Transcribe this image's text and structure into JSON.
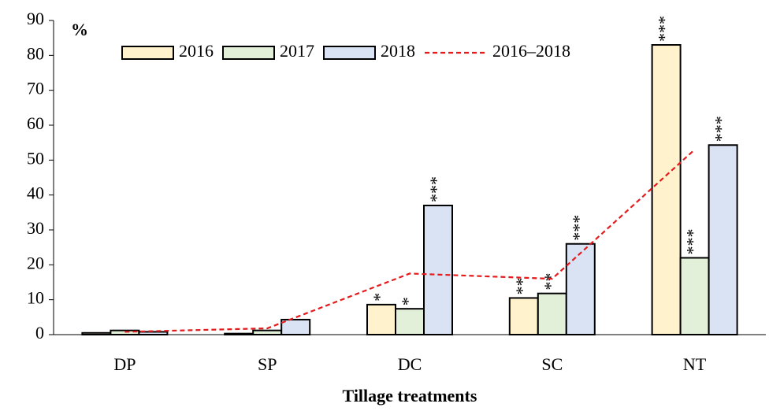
{
  "chart_data": {
    "type": "bar",
    "y_unit_label": "%",
    "x_label": "Tillage treatments",
    "categories": [
      "DP",
      "SP",
      "DC",
      "SC",
      "NT"
    ],
    "series": [
      {
        "name": "2016",
        "color": "#fff2cc",
        "values": [
          0.5,
          0.3,
          8.6,
          10.5,
          83
        ],
        "annotations": [
          null,
          null,
          "*",
          "**",
          "***"
        ]
      },
      {
        "name": "2017",
        "color": "#e2f0d9",
        "values": [
          1.2,
          1.2,
          7.4,
          11.8,
          22
        ],
        "annotations": [
          null,
          null,
          "*",
          "**",
          "***"
        ]
      },
      {
        "name": "2018",
        "color": "#dae3f3",
        "values": [
          0.8,
          4.3,
          37,
          26,
          54.3
        ],
        "annotations": [
          null,
          null,
          "***",
          "***",
          "***"
        ]
      },
      {
        "name": "2016–2018",
        "color": "#e41a1c",
        "type": "line",
        "dashed": true,
        "values": [
          0.8,
          1.8,
          17.5,
          16,
          53
        ]
      }
    ],
    "ylim": [
      0,
      90
    ],
    "yticks": [
      0,
      10,
      20,
      30,
      40,
      50,
      60,
      70,
      80,
      90
    ],
    "grid": false
  }
}
